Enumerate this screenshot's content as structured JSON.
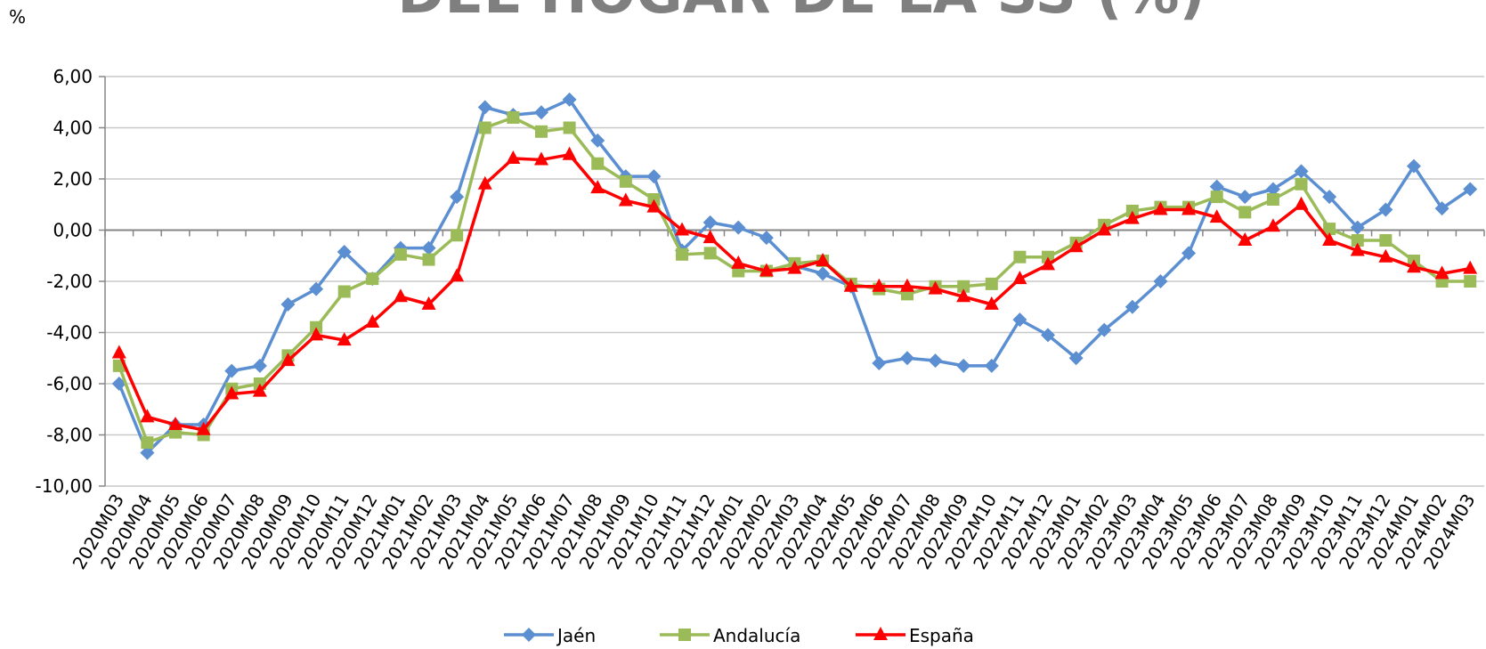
{
  "chart_data": {
    "type": "line",
    "title": "DEL HOGAR DE LA SS (%)",
    "y_label": "%",
    "categories": [
      "2020M03",
      "2020M04",
      "2020M05",
      "2020M06",
      "2020M07",
      "2020M08",
      "2020M09",
      "2020M10",
      "2020M11",
      "2020M12",
      "2021M01",
      "2021M02",
      "2021M03",
      "2021M04",
      "2021M05",
      "2021M06",
      "2021M07",
      "2021M08",
      "2021M09",
      "2021M10",
      "2021M11",
      "2021M12",
      "2022M01",
      "2022M02",
      "2022M03",
      "2022M04",
      "2022M05",
      "2022M06",
      "2022M07",
      "2022M08",
      "2022M09",
      "2022M10",
      "2022M11",
      "2022M12",
      "2023M01",
      "2023M02",
      "2023M03",
      "2023M04",
      "2023M05",
      "2023M06",
      "2023M07",
      "2023M08",
      "2023M09",
      "2023M10",
      "2023M11",
      "2023M12",
      "2024M01",
      "2024M02",
      "2024M03"
    ],
    "series": [
      {
        "name": "Jaén",
        "color": "#5b8fd1",
        "marker": "diamond",
        "values": [
          -6.0,
          -8.7,
          -7.6,
          -7.6,
          -5.5,
          -5.3,
          -2.9,
          -2.3,
          -0.85,
          -1.9,
          -0.7,
          -0.7,
          1.3,
          4.8,
          4.5,
          4.6,
          5.1,
          3.5,
          2.1,
          2.1,
          -0.8,
          0.3,
          0.1,
          -0.3,
          -1.4,
          -1.7,
          -2.2,
          -5.2,
          -5.0,
          -5.1,
          -5.3,
          -5.3,
          -3.5,
          -4.1,
          -5.0,
          -3.9,
          -3.0,
          -2.0,
          -0.9,
          1.7,
          1.3,
          1.6,
          2.3,
          1.3,
          0.1,
          0.8,
          2.5,
          0.85,
          1.6
        ]
      },
      {
        "name": "Andalucía",
        "color": "#9bbb59",
        "marker": "square",
        "values": [
          -5.3,
          -8.3,
          -7.9,
          -8.0,
          -6.2,
          -6.0,
          -4.9,
          -3.8,
          -2.4,
          -1.9,
          -0.95,
          -1.15,
          -0.2,
          4.0,
          4.4,
          3.85,
          4.0,
          2.6,
          1.9,
          1.2,
          -0.95,
          -0.9,
          -1.6,
          -1.6,
          -1.3,
          -1.2,
          -2.1,
          -2.3,
          -2.5,
          -2.2,
          -2.2,
          -2.1,
          -1.05,
          -1.05,
          -0.5,
          0.2,
          0.75,
          0.9,
          0.9,
          1.3,
          0.7,
          1.2,
          1.8,
          0.05,
          -0.4,
          -0.4,
          -1.2,
          -2.0,
          -2.0
        ]
      },
      {
        "name": "España",
        "color": "#ff0000",
        "marker": "triangle",
        "values": [
          -4.8,
          -7.3,
          -7.6,
          -7.8,
          -6.4,
          -6.3,
          -5.1,
          -4.1,
          -4.3,
          -3.6,
          -2.6,
          -2.9,
          -1.8,
          1.8,
          2.8,
          2.75,
          2.95,
          1.65,
          1.15,
          0.9,
          0.0,
          -0.3,
          -1.3,
          -1.6,
          -1.5,
          -1.2,
          -2.2,
          -2.2,
          -2.2,
          -2.3,
          -2.6,
          -2.9,
          -1.9,
          -1.35,
          -0.65,
          0.0,
          0.45,
          0.8,
          0.8,
          0.5,
          -0.4,
          0.15,
          1.0,
          -0.4,
          -0.8,
          -1.05,
          -1.45,
          -1.7,
          -1.5
        ]
      }
    ],
    "ylim": [
      -10,
      6
    ],
    "yticks": [
      {
        "value": -10,
        "label": "-10,00"
      },
      {
        "value": -8,
        "label": "-8,00"
      },
      {
        "value": -6,
        "label": "-6,00"
      },
      {
        "value": -4,
        "label": "-4,00"
      },
      {
        "value": -2,
        "label": "-2,00"
      },
      {
        "value": 0,
        "label": "0,00"
      },
      {
        "value": 2,
        "label": "2,00"
      },
      {
        "value": 4,
        "label": "4,00"
      },
      {
        "value": 6,
        "label": "6,00"
      }
    ],
    "grid": true,
    "legend": "bottom"
  }
}
